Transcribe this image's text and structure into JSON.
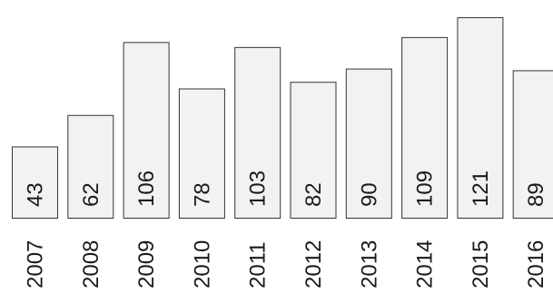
{
  "chart_data": {
    "type": "bar",
    "title": "",
    "xlabel": "",
    "ylabel": "",
    "categories": [
      "2007",
      "2008",
      "2009",
      "2010",
      "2011",
      "2012",
      "2013",
      "2014",
      "2015",
      "2016"
    ],
    "values": [
      43,
      62,
      106,
      78,
      103,
      82,
      90,
      109,
      121,
      89
    ],
    "ylim": [
      0,
      127
    ],
    "grid": false,
    "legend": "none",
    "data_labels": "inside-bottom-rotated",
    "tick_labels_rotated": true,
    "colors": {
      "bar_fill": "#f2f2f2",
      "bar_stroke": "#333333",
      "text": "#1a1a1a"
    }
  }
}
